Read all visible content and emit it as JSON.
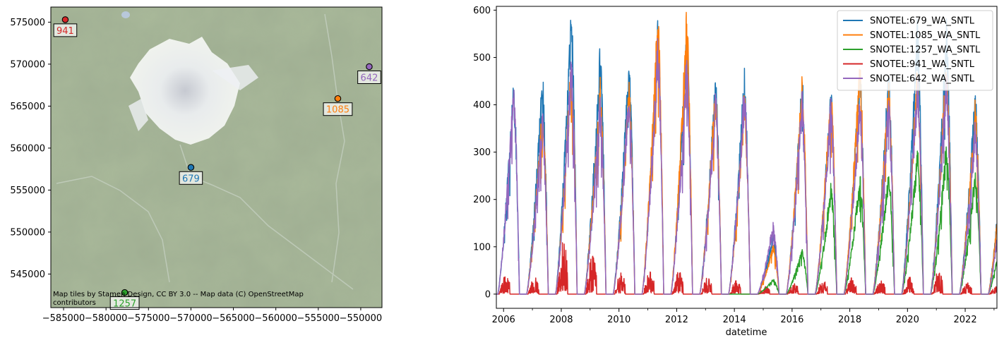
{
  "chart_data": [
    {
      "type": "scatter",
      "title": "",
      "xlabel": "",
      "ylabel": "",
      "xlim": [
        -586500,
        -547500
      ],
      "ylim": [
        541000,
        576800
      ],
      "xticks": [
        -585000,
        -580000,
        -575000,
        -570000,
        -565000,
        -560000,
        -555000,
        -550000
      ],
      "xtick_labels": [
        "−585000",
        "−580000",
        "−575000",
        "−570000",
        "−565000",
        "−560000",
        "−555000",
        "−550000"
      ],
      "yticks": [
        545000,
        550000,
        555000,
        560000,
        565000,
        570000,
        575000
      ],
      "ytick_labels": [
        "545000",
        "550000",
        "555000",
        "560000",
        "565000",
        "570000",
        "575000"
      ],
      "points": [
        {
          "label": "679",
          "x": -570000,
          "y": 557700,
          "color": "#1f77b4"
        },
        {
          "label": "1085",
          "x": -552700,
          "y": 565900,
          "color": "#ff7f0e"
        },
        {
          "label": "1257",
          "x": -577800,
          "y": 542800,
          "color": "#2ca02c"
        },
        {
          "label": "941",
          "x": -584800,
          "y": 575300,
          "color": "#d62728"
        },
        {
          "label": "642",
          "x": -549000,
          "y": 569700,
          "color": "#9467bd"
        }
      ],
      "attribution": "Map tiles by Stamen Design, CC BY 3.0 -- Map data (C) OpenStreetMap contributors",
      "attribution_lines": [
        "Map tiles by Stamen Design, CC BY 3.0 -- Map data (C) OpenStreetMap",
        "contributors"
      ]
    },
    {
      "type": "line",
      "title": "",
      "xlabel": "datetime",
      "ylabel": "",
      "xlim": [
        2005.75,
        2023.1
      ],
      "ylim": [
        -30,
        608
      ],
      "xticks": [
        2006,
        2008,
        2010,
        2012,
        2014,
        2016,
        2018,
        2020,
        2022
      ],
      "xtick_labels": [
        "2006",
        "2008",
        "2010",
        "2012",
        "2014",
        "2016",
        "2018",
        "2020",
        "2022"
      ],
      "yticks": [
        0,
        100,
        200,
        300,
        400,
        500,
        600
      ],
      "ytick_labels": [
        "0",
        "100",
        "200",
        "300",
        "400",
        "500",
        "600"
      ],
      "legend": "top-right",
      "seasons": [
        2006,
        2007,
        2008,
        2009,
        2010,
        2011,
        2012,
        2013,
        2014,
        2015,
        2016,
        2017,
        2018,
        2019,
        2020,
        2021,
        2022,
        2023
      ],
      "series": [
        {
          "name": "SNOTEL:679_WA_SNTL",
          "color": "#1f77b4",
          "start": 2005.75,
          "peaks": [
            430,
            440,
            578,
            495,
            475,
            540,
            530,
            440,
            450,
            120,
            440,
            410,
            460,
            450,
            550,
            545,
            410,
            340
          ]
        },
        {
          "name": "SNOTEL:1085_WA_SNTL",
          "color": "#ff7f0e",
          "start": 2006.8,
          "peaks": [
            0,
            380,
            480,
            430,
            420,
            575,
            565,
            420,
            400,
            100,
            430,
            420,
            470,
            420,
            460,
            480,
            380,
            320
          ]
        },
        {
          "name": "SNOTEL:1257_WA_SNTL",
          "color": "#2ca02c",
          "start": 2013.6,
          "peaks": [
            0,
            0,
            0,
            0,
            0,
            0,
            0,
            0,
            0,
            30,
            90,
            220,
            240,
            250,
            290,
            300,
            250,
            160
          ]
        },
        {
          "name": "SNOTEL:941_WA_SNTL",
          "color": "#d62728",
          "start": 2005.75,
          "peaks": [
            35,
            30,
            100,
            70,
            40,
            45,
            40,
            30,
            25,
            15,
            20,
            25,
            30,
            25,
            30,
            40,
            20,
            15
          ]
        },
        {
          "name": "SNOTEL:642_WA_SNTL",
          "color": "#9467bd",
          "start": 2005.75,
          "peaks": [
            422,
            360,
            470,
            390,
            415,
            510,
            470,
            400,
            420,
            145,
            400,
            390,
            400,
            395,
            440,
            450,
            340,
            250
          ]
        }
      ]
    }
  ]
}
